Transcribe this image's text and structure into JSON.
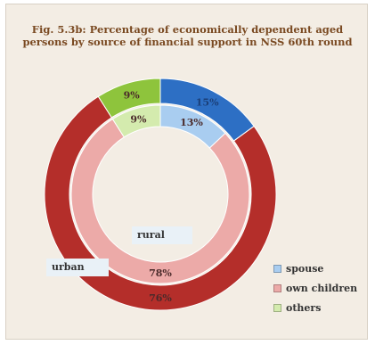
{
  "title_line1": "Fig. 5.3b: Percentage of economically dependent aged",
  "title_line2": "persons by source of financial support in NSS 60th round",
  "ring_labels": {
    "inner": "rural",
    "outer": "urban"
  },
  "colors": {
    "spouse_outer": "#2d6fc4",
    "spouse_inner": "#a9cdf0",
    "own_children_outer": "#b42e2a",
    "own_children_inner": "#ecaaa8",
    "others_outer": "#8ec43c",
    "others_inner": "#d4ebae"
  },
  "chart_data": {
    "type": "donut",
    "title": "Fig. 5.3b: Percentage of economically dependent aged persons by source of financial support in NSS 60th round",
    "categories": [
      "spouse",
      "own children",
      "others"
    ],
    "series": [
      {
        "name": "urban",
        "ring": "outer",
        "values": [
          15,
          76,
          9
        ],
        "labels": [
          "15%",
          "76%",
          "9%"
        ]
      },
      {
        "name": "rural",
        "ring": "inner",
        "values": [
          13,
          78,
          9
        ],
        "labels": [
          "13%",
          "78%",
          "9%"
        ]
      }
    ],
    "legend": "bottom-right"
  }
}
